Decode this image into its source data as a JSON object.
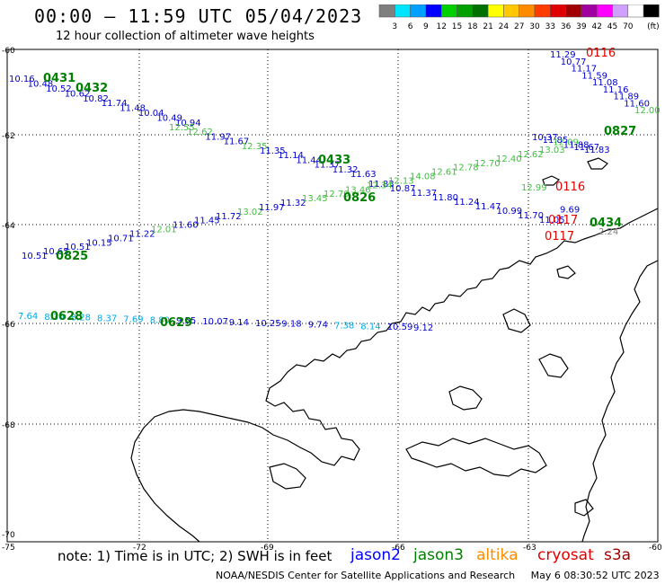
{
  "header": {
    "title": "00:00 – 11:59 UTC 05/04/2023",
    "subtitle": "12 hour collection of altimeter wave heights"
  },
  "scale": {
    "unit": "(ft)",
    "values": [
      "3",
      "6",
      "9",
      "12",
      "15",
      "18",
      "21",
      "24",
      "27",
      "30",
      "33",
      "36",
      "39",
      "42",
      "45",
      "70"
    ],
    "colors": [
      "#7f7f7f",
      "#00e5ff",
      "#00a0ff",
      "#0000ff",
      "#00d000",
      "#00a000",
      "#007000",
      "#ffff00",
      "#ffc800",
      "#ff8c00",
      "#ff3c00",
      "#e00000",
      "#a00000",
      "#a000a0",
      "#ff00ff",
      "#d0a0ff",
      "#ffffff",
      "#000000"
    ]
  },
  "axes": {
    "lat_labels": [
      "-60",
      "-62",
      "-64",
      "-66",
      "-68",
      "-70"
    ],
    "lon_labels": [
      "-75",
      "-72",
      "-69",
      "-66",
      "-63",
      "-60"
    ]
  },
  "tracks": [
    {
      "id": "0431",
      "color": "#008000",
      "label_color": "#008000",
      "values": [
        "10.16",
        "10.48",
        "10.52",
        "10.62",
        "10.82",
        "11.74",
        "11.48",
        "10.04",
        "10.49",
        "10.94"
      ]
    },
    {
      "id": "0432",
      "color": "#008000",
      "values": [
        "12.55",
        "12.62",
        "11.97",
        "11.67",
        "12.35",
        "11.35",
        "11.14",
        "11.44",
        "11.37",
        "11.32",
        "11.63"
      ]
    },
    {
      "id": "0433",
      "color": "#008000",
      "values": [
        "11.83",
        "10.87",
        "11.37",
        "11.80",
        "11.24",
        "11.47",
        "10.99",
        "11.70",
        "11.05"
      ]
    },
    {
      "id": "0826",
      "color": "#008000",
      "values": [
        "10.51",
        "10.65",
        "10.51",
        "10.15",
        "10.71",
        "11.22",
        "12.01",
        "11.60",
        "11.45",
        "11.72",
        "13.02",
        "11.97",
        "11.32",
        "13.45",
        "12.70",
        "13.46",
        "12.34",
        "12.13",
        "14.08",
        "12.61",
        "12.78",
        "12.70",
        "12.40",
        "12.62",
        "13.03"
      ]
    },
    {
      "id": "0628",
      "color": "#008000",
      "values": [
        "7.64",
        "8.30",
        "8.28",
        "8.37",
        "7.69",
        "8.80",
        "9.55",
        "10.07",
        "9.14",
        "10.25",
        "9.18",
        "9.74",
        "7.38",
        "8.14",
        "10.59",
        "9.12"
      ]
    }
  ],
  "labels": {
    "pass_0431": "0431",
    "pass_0432": "0432",
    "pass_0433": "0433",
    "pass_0826": "0826",
    "pass_0825": "0825",
    "pass_0628": "0628",
    "pass_0629": "0629",
    "pass_0827": "0827",
    "pass_0434": "0434",
    "pass_0116a": "0116",
    "pass_0116b": "0116",
    "pass_0117": "0117",
    "pass_0117b": "0117"
  },
  "east_values": {
    "top": [
      "11.29",
      "10.77",
      "11.17",
      "11.59",
      "11.08",
      "11.16",
      "11.89",
      "11.60",
      "12.00"
    ],
    "mid": [
      "10.37",
      "11.85",
      "12.09",
      "11.88",
      "11.67",
      "11.83"
    ],
    "low": [
      "12.99",
      "9.69",
      "2.24"
    ]
  },
  "footer": {
    "note": "note: 1) Time is in UTC; 2) SWH is in feet",
    "sats": [
      {
        "name": "jason2",
        "color": "#0000ff"
      },
      {
        "name": "jason3",
        "color": "#008000"
      },
      {
        "name": "altika",
        "color": "#ff8c00"
      },
      {
        "name": "cryosat",
        "color": "#e00000"
      },
      {
        "name": "s3a",
        "color": "#a00000"
      }
    ],
    "credit": "NOAA/NESDIS Center for Satellite Applications and Research",
    "timestamp": "May  6 08:30:52 UTC 2023"
  }
}
